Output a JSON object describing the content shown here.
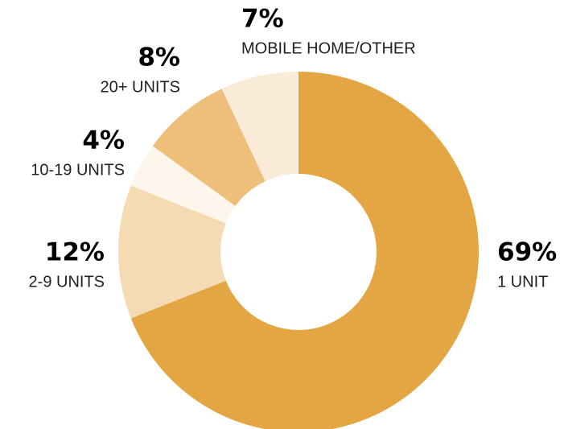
{
  "chart_data": {
    "type": "pie",
    "categories": [
      "1 UNIT",
      "2-9 UNITS",
      "10-19 UNITS",
      "20+ UNITS",
      "MOBILE HOME/OTHER"
    ],
    "values": [
      69,
      12,
      4,
      8,
      7
    ],
    "value_labels": [
      "69%",
      "12%",
      "4%",
      "8%",
      "7%"
    ],
    "colors": [
      "#e4a642",
      "#f5dbb3",
      "#fdf6ec",
      "#edbf7a",
      "#faebd8"
    ]
  }
}
